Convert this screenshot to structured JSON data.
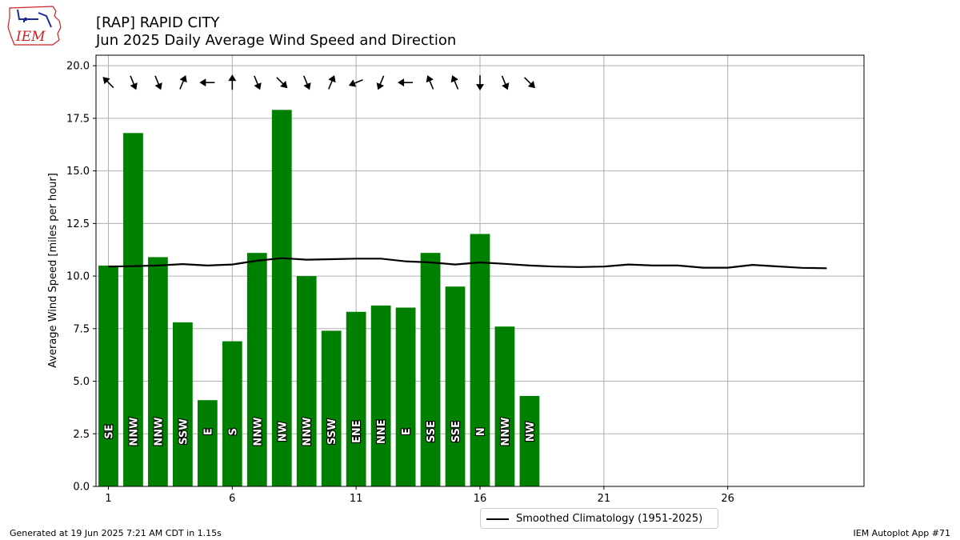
{
  "header": {
    "title_line1": "[RAP] RAPID CITY",
    "title_line2": "Jun 2025 Daily Average Wind Speed and Direction"
  },
  "logo": {
    "text": "IEM",
    "icon": "iowa-state-outline-logo"
  },
  "footer": {
    "left": "Generated at 19 Jun 2025 7:21 AM CDT in 1.15s",
    "right": "IEM Autoplot App #71"
  },
  "colors": {
    "bar": "#008000",
    "climo": "#000000",
    "grid": "#b0b0b0",
    "logo": "#cc2222"
  },
  "chart_data": {
    "type": "bar",
    "title": "[RAP] RAPID CITY\nJun 2025 Daily Average Wind Speed and Direction",
    "xlabel": "",
    "ylabel": "Average Wind Speed [miles per hour]",
    "xlim": [
      0.5,
      31.5
    ],
    "ylim": [
      0,
      20.5
    ],
    "xticks": [
      1,
      6,
      11,
      16,
      21,
      26
    ],
    "yticks": [
      0.0,
      2.5,
      5.0,
      7.5,
      10.0,
      12.5,
      15.0,
      17.5,
      20.0
    ],
    "ytick_labels": [
      "0.0",
      "2.5",
      "5.0",
      "7.5",
      "10.0",
      "12.5",
      "15.0",
      "17.5",
      "20.0"
    ],
    "grid": true,
    "legend_position": "bottom-center, below axes",
    "days": [
      1,
      2,
      3,
      4,
      5,
      6,
      7,
      8,
      9,
      10,
      11,
      12,
      13,
      14,
      15,
      16,
      17,
      18
    ],
    "speed_mph": [
      10.5,
      16.8,
      10.9,
      7.8,
      4.1,
      6.9,
      11.1,
      17.9,
      10.0,
      7.4,
      8.3,
      8.6,
      8.5,
      11.1,
      9.5,
      12.0,
      7.6,
      4.3
    ],
    "direction_labels": [
      "SE",
      "NNW",
      "NNW",
      "SSW",
      "E",
      "S",
      "NNW",
      "NW",
      "NNW",
      "SSW",
      "ENE",
      "NNE",
      "E",
      "SSE",
      "SSE",
      "N",
      "NNW",
      "NW"
    ],
    "direction_deg": [
      135,
      337.5,
      337.5,
      202.5,
      90,
      180,
      337.5,
      315,
      337.5,
      202.5,
      67.5,
      22.5,
      90,
      157.5,
      157.5,
      0,
      337.5,
      315
    ],
    "series": [
      {
        "name": "Smoothed Climatology (1951-2025)",
        "x": [
          1,
          2,
          3,
          4,
          5,
          6,
          7,
          8,
          9,
          10,
          11,
          12,
          13,
          14,
          15,
          16,
          17,
          18,
          19,
          20,
          21,
          22,
          23,
          24,
          25,
          26,
          27,
          28,
          29,
          30
        ],
        "values": [
          10.45,
          10.47,
          10.5,
          10.57,
          10.5,
          10.55,
          10.73,
          10.85,
          10.78,
          10.8,
          10.83,
          10.83,
          10.7,
          10.65,
          10.55,
          10.65,
          10.58,
          10.5,
          10.45,
          10.43,
          10.45,
          10.55,
          10.5,
          10.5,
          10.4,
          10.4,
          10.53,
          10.46,
          10.39,
          10.37
        ]
      }
    ]
  }
}
